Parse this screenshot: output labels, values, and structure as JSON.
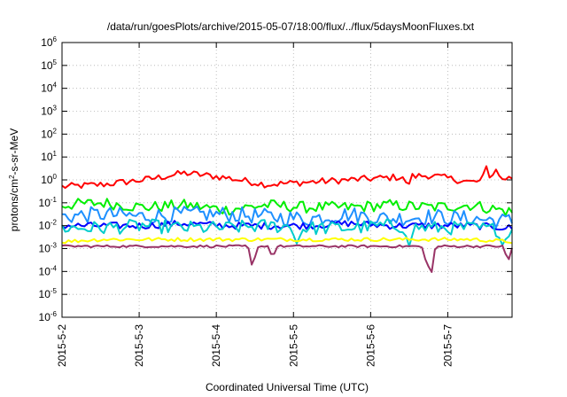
{
  "chart_data": {
    "type": "line",
    "title": "/data/run/goesPlots/archive/2015-05-07/18:00/flux/../flux/5daysMoonFluxes.txt",
    "xlabel": "Coordinated Universal Time (UTC)",
    "ylabel": "protons/cm²-s-sr-MeV",
    "ylabel_parts": {
      "before": "protons/cm",
      "sup": "2",
      "after": "-s-sr-MeV"
    },
    "yscale": "log",
    "ylim_exp": [
      -6,
      6
    ],
    "y_tick_exponents": [
      -6,
      -5,
      -4,
      -3,
      -2,
      -1,
      0,
      1,
      2,
      3,
      4,
      5,
      6
    ],
    "y_tick_base": "10",
    "x_range_days": [
      "2015-5-2",
      "2015-5-7 20:00"
    ],
    "x_tick_labels": [
      "2015-5-2",
      "2015-5-3",
      "2015-5-4",
      "2015-5-5",
      "2015-5-6",
      "2015-5-7"
    ],
    "grid": true,
    "samples_per_day": 24,
    "series": [
      {
        "color": "#ff0000",
        "baseline_log10": [
          -0.3,
          -0.2,
          0.0,
          0.3,
          0.1,
          -0.2,
          -0.1,
          0.0,
          0.1,
          0.2,
          -0.1,
          0.1
        ],
        "noise_log10": 0.15,
        "events": [
          {
            "day": 4.48,
            "min_log10": -0.3
          },
          {
            "day": 5.5,
            "peak_log10": 0.6
          },
          {
            "day": 5.62,
            "peak_log10": 0.5
          }
        ]
      },
      {
        "color": "#00ee00",
        "baseline_log10": [
          -1.1,
          -1.0,
          -1.2,
          -1.1,
          -1.3,
          -1.1,
          -1.2,
          -1.2,
          -1.1,
          -1.2,
          -1.1,
          -1.4
        ],
        "noise_log10": 0.25,
        "events": []
      },
      {
        "color": "#1e90ff",
        "baseline_log10": [
          -1.6,
          -1.5,
          -1.6,
          -1.5,
          -1.5,
          -1.6,
          -1.7,
          -1.5,
          -1.7,
          -1.6,
          -1.7,
          -1.8
        ],
        "noise_log10": 0.35,
        "events": []
      },
      {
        "color": "#0000ff",
        "baseline_log10": [
          -2.0,
          -2.0,
          -2.0,
          -1.9,
          -2.0,
          -2.0,
          -2.0,
          -1.9,
          -2.0,
          -2.0,
          -2.0,
          -2.1
        ],
        "noise_log10": 0.15,
        "events": []
      },
      {
        "color": "#00cccc",
        "baseline_log10": [
          -2.1,
          -2.1,
          -2.0,
          -2.1,
          -2.1,
          -2.0,
          -2.1,
          -2.1,
          -2.0,
          -2.1,
          -2.1,
          -2.2
        ],
        "noise_log10": 0.3,
        "events": [
          {
            "day": 3.05,
            "min_log10": -2.9
          },
          {
            "day": 4.5,
            "min_log10": -2.9
          },
          {
            "day": 5.72,
            "min_log10": -3.0
          }
        ]
      },
      {
        "color": "#ffff00",
        "baseline_log10": [
          -2.7,
          -2.6,
          -2.6,
          -2.6,
          -2.6,
          -2.6,
          -2.6,
          -2.6,
          -2.6,
          -2.6,
          -2.6,
          -2.7
        ],
        "noise_log10": 0.08,
        "events": []
      },
      {
        "color": "#993366",
        "baseline_log10": [
          -2.9,
          -2.9,
          -2.9,
          -2.9,
          -2.9,
          -2.9,
          -2.9,
          -2.9,
          -2.9,
          -2.9,
          -2.9,
          -2.9
        ],
        "noise_log10": 0.05,
        "events": [
          {
            "day": 2.47,
            "min_log10": -3.9
          },
          {
            "day": 2.73,
            "min_log10": -3.4
          },
          {
            "day": 4.72,
            "min_log10": -3.6
          },
          {
            "day": 4.78,
            "min_log10": -4.3
          },
          {
            "day": 5.78,
            "min_log10": -3.6
          }
        ]
      }
    ]
  }
}
